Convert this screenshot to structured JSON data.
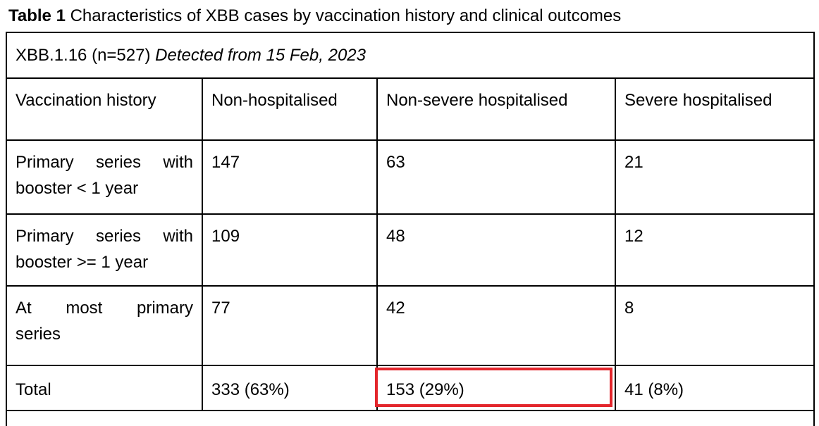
{
  "caption": {
    "label": "Table 1",
    "text": " Characteristics of XBB cases by vaccination history and clinical outcomes"
  },
  "table": {
    "title_plain": "XBB.1.16 (n=527) ",
    "title_italic": "Detected from 15 Feb, 2023",
    "headers": [
      "Vaccination history",
      "Non-hospitalised",
      "Non-severe hospitalised",
      "Severe hospitalised"
    ],
    "rows": [
      {
        "label": "Primary series with booster < 1 year",
        "values": [
          "147",
          "63",
          "21"
        ]
      },
      {
        "label": "Primary series with booster >= 1 year",
        "values": [
          "109",
          "48",
          "12"
        ]
      },
      {
        "label_line1": "At most primary",
        "label_line2": "series",
        "values": [
          "77",
          "42",
          "8"
        ]
      }
    ],
    "total": {
      "label": "Total",
      "values": [
        "333 (63%)",
        "153 (29%)",
        "41 (8%)"
      ]
    },
    "highlight_color": "#e3262c"
  }
}
